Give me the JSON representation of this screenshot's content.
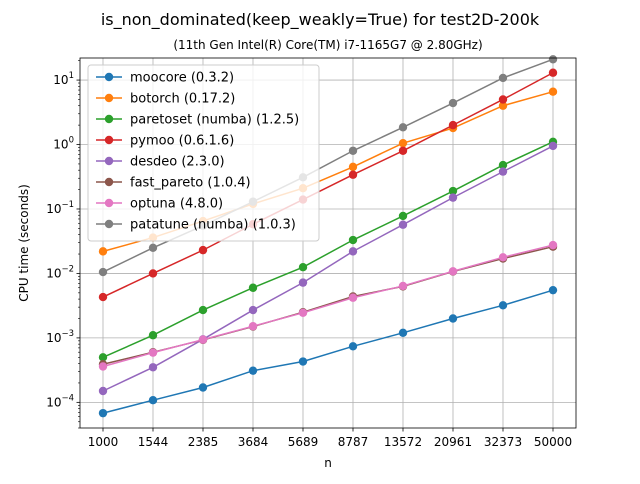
{
  "chart_data": {
    "type": "line",
    "title": "is_non_dominated(keep_weakly=True) for test2D-200k",
    "subtitle": "(11th Gen Intel(R) Core(TM) i7-1165G7 @ 2.80GHz)",
    "xlabel": "n",
    "ylabel": "CPU time (seconds)",
    "yscale": "log",
    "ylim": [
      4e-05,
      22
    ],
    "grid": true,
    "legend_position": "top-left",
    "categories": [
      "1000",
      "1544",
      "2385",
      "3684",
      "5689",
      "8787",
      "13572",
      "20961",
      "32373",
      "50000"
    ],
    "y_tick_labels": [
      {
        "value": 0.0001,
        "base": "10",
        "exp": "−4"
      },
      {
        "value": 0.001,
        "base": "10",
        "exp": "−3"
      },
      {
        "value": 0.01,
        "base": "10",
        "exp": "−2"
      },
      {
        "value": 0.1,
        "base": "10",
        "exp": "−1"
      },
      {
        "value": 1,
        "base": "10",
        "exp": "0"
      },
      {
        "value": 10,
        "base": "10",
        "exp": "1"
      }
    ],
    "series": [
      {
        "name": "moocore (0.3.2)",
        "color": "#1f77b4",
        "values": [
          6.8e-05,
          0.000108,
          0.00017,
          0.00031,
          0.00043,
          0.00074,
          0.0012,
          0.002,
          0.0032,
          0.0055
        ]
      },
      {
        "name": "botorch (0.17.2)",
        "color": "#ff7f0e",
        "values": [
          0.022,
          0.036,
          0.065,
          0.12,
          0.21,
          0.45,
          1.05,
          1.8,
          4.0,
          6.6
        ]
      },
      {
        "name": "paretoset (numba) (1.2.5)",
        "color": "#2ca02c",
        "values": [
          0.0005,
          0.0011,
          0.0027,
          0.006,
          0.0125,
          0.033,
          0.078,
          0.19,
          0.48,
          1.1
        ]
      },
      {
        "name": "pymoo (0.6.1.6)",
        "color": "#d62728",
        "values": [
          0.0043,
          0.01,
          0.023,
          0.058,
          0.14,
          0.34,
          0.8,
          2.0,
          5.0,
          13.0
        ]
      },
      {
        "name": "desdeo (2.3.0)",
        "color": "#9467bd",
        "values": [
          0.00015,
          0.00035,
          0.00095,
          0.0027,
          0.0072,
          0.022,
          0.057,
          0.15,
          0.38,
          0.95
        ]
      },
      {
        "name": "fast_pareto (1.0.4)",
        "color": "#8c564b",
        "values": [
          0.00039,
          0.0006,
          0.00093,
          0.0015,
          0.0025,
          0.0044,
          0.0063,
          0.0107,
          0.017,
          0.026
        ]
      },
      {
        "name": "optuna (4.8.0)",
        "color": "#e377c2",
        "values": [
          0.00036,
          0.00059,
          0.00094,
          0.00152,
          0.00245,
          0.0042,
          0.0064,
          0.0108,
          0.0178,
          0.0275
        ]
      },
      {
        "name": "patatune (numba) (1.0.3)",
        "color": "#7f7f7f",
        "values": [
          0.0105,
          0.025,
          0.055,
          0.13,
          0.31,
          0.8,
          1.85,
          4.4,
          10.8,
          21.0
        ]
      }
    ]
  }
}
